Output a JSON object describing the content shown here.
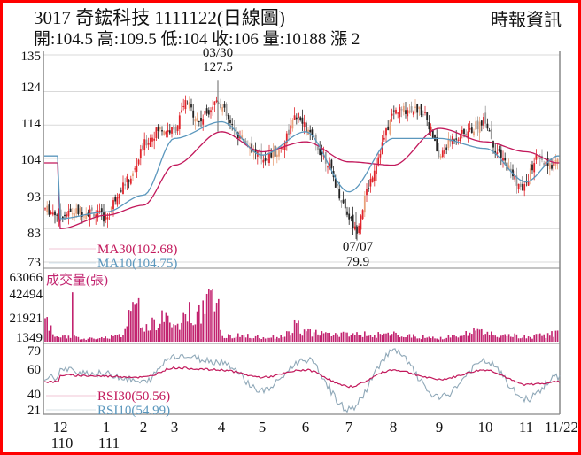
{
  "header": {
    "title": "3017  奇鋐科技 1111122(日線圖)",
    "source": "時報資訊",
    "quote": "開:104.5 高:109.5 低:104 收:106 量:10188 漲 2"
  },
  "colors": {
    "border": "#ff0000",
    "up_candle": "#e0242b",
    "down_candle": "#222222",
    "ma30": "#c2185b",
    "ma10": "#5b97bd",
    "volume": "#c2236f",
    "rsi30": "#c2185b",
    "rsi10": "#8fa8b8",
    "grid": "#d9d9d9"
  },
  "chart_data": [
    {
      "type": "candlestick",
      "title": "3017 奇鋐科技 1111122(日線圖)",
      "ylabel": "",
      "yticks": [
        135,
        124,
        114,
        104,
        93,
        83,
        73
      ],
      "ylim": [
        73,
        135
      ],
      "grid": true,
      "annotations": [
        {
          "date": "03/30",
          "value": "127.5",
          "label": "high"
        },
        {
          "date": "07/07",
          "value": "79.9",
          "label": "low"
        }
      ],
      "legend": [
        {
          "name": "MA30",
          "value": "102.68"
        },
        {
          "name": "MA10",
          "value": "104.75"
        }
      ],
      "series": [
        {
          "name": "close_approx",
          "x": [
            "12",
            "1",
            "2",
            "3",
            "3/30",
            "4",
            "5",
            "6",
            "7",
            "7/07",
            "8",
            "9",
            "10",
            "11",
            "11/22"
          ],
          "values": [
            88,
            87,
            95,
            118,
            122,
            112,
            105,
            113,
            95,
            82,
            117,
            104,
            112,
            97,
            106
          ]
        },
        {
          "name": "MA30",
          "x": [
            "12",
            "1",
            "2",
            "3",
            "4",
            "5",
            "6",
            "7",
            "8",
            "9",
            "10",
            "11",
            "11/22"
          ],
          "values": [
            83,
            87,
            90,
            102,
            112,
            106,
            109,
            103,
            102,
            113,
            109,
            106,
            102.68
          ]
        },
        {
          "name": "MA10",
          "x": [
            "12",
            "1",
            "2",
            "3",
            "4",
            "5",
            "6",
            "7",
            "8",
            "9",
            "10",
            "11",
            "11/22"
          ],
          "values": [
            86,
            88,
            93,
            110,
            115,
            105,
            112,
            94,
            110,
            110,
            107,
            97,
            104.75
          ]
        }
      ]
    },
    {
      "type": "bar",
      "title": "成交量(張)",
      "yticks": [
        63066,
        42494,
        21921,
        1349
      ],
      "ylim": [
        0,
        63066
      ],
      "x": [
        "12",
        "1",
        "2",
        "3",
        "4",
        "5",
        "6",
        "7",
        "8",
        "9",
        "10",
        "11",
        "11/22"
      ],
      "values_approx": [
        30000,
        5000,
        46000,
        30000,
        63066,
        8000,
        35000,
        12000,
        14000,
        8000,
        12000,
        6000,
        10188
      ]
    },
    {
      "type": "line",
      "title": "RSI",
      "yticks": [
        79,
        60,
        40,
        21
      ],
      "ylim": [
        15,
        85
      ],
      "legend": [
        {
          "name": "RSI30",
          "value": "50.56"
        },
        {
          "name": "RSI10",
          "value": "54.99"
        }
      ],
      "x": [
        "12",
        "1",
        "2",
        "3",
        "4",
        "5",
        "6",
        "7",
        "8",
        "9",
        "10",
        "11",
        "11/22"
      ],
      "series": [
        {
          "name": "RSI30",
          "values": [
            57,
            56,
            55,
            64,
            62,
            55,
            62,
            46,
            62,
            53,
            62,
            48,
            50.56
          ]
        },
        {
          "name": "RSI10",
          "values": [
            62,
            58,
            50,
            76,
            70,
            42,
            72,
            24,
            80,
            35,
            70,
            34,
            54.99
          ]
        }
      ]
    }
  ],
  "axes": {
    "price_ticks": [
      "135",
      "124",
      "114",
      "104",
      "93",
      "83",
      "73"
    ],
    "volume_ticks": [
      "63066",
      "42494",
      "21921",
      "1349"
    ],
    "rsi_ticks": [
      "79",
      "60",
      "40",
      "21"
    ],
    "x_months": [
      "12",
      "1",
      "2",
      "3",
      "4",
      "5",
      "6",
      "7",
      "8",
      "9",
      "10",
      "11",
      "11/22"
    ],
    "x_years": [
      "110",
      "111"
    ]
  },
  "annotations": {
    "high_date": "03/30",
    "high_value": "127.5",
    "low_date": "07/07",
    "low_value": "79.9"
  },
  "legends": {
    "ma30": "MA30(102.68)",
    "ma10": "MA10(104.75)",
    "volume": "成交量(張)",
    "rsi30": "RSI30(50.56)",
    "rsi10": "RSI10(54.99)"
  }
}
